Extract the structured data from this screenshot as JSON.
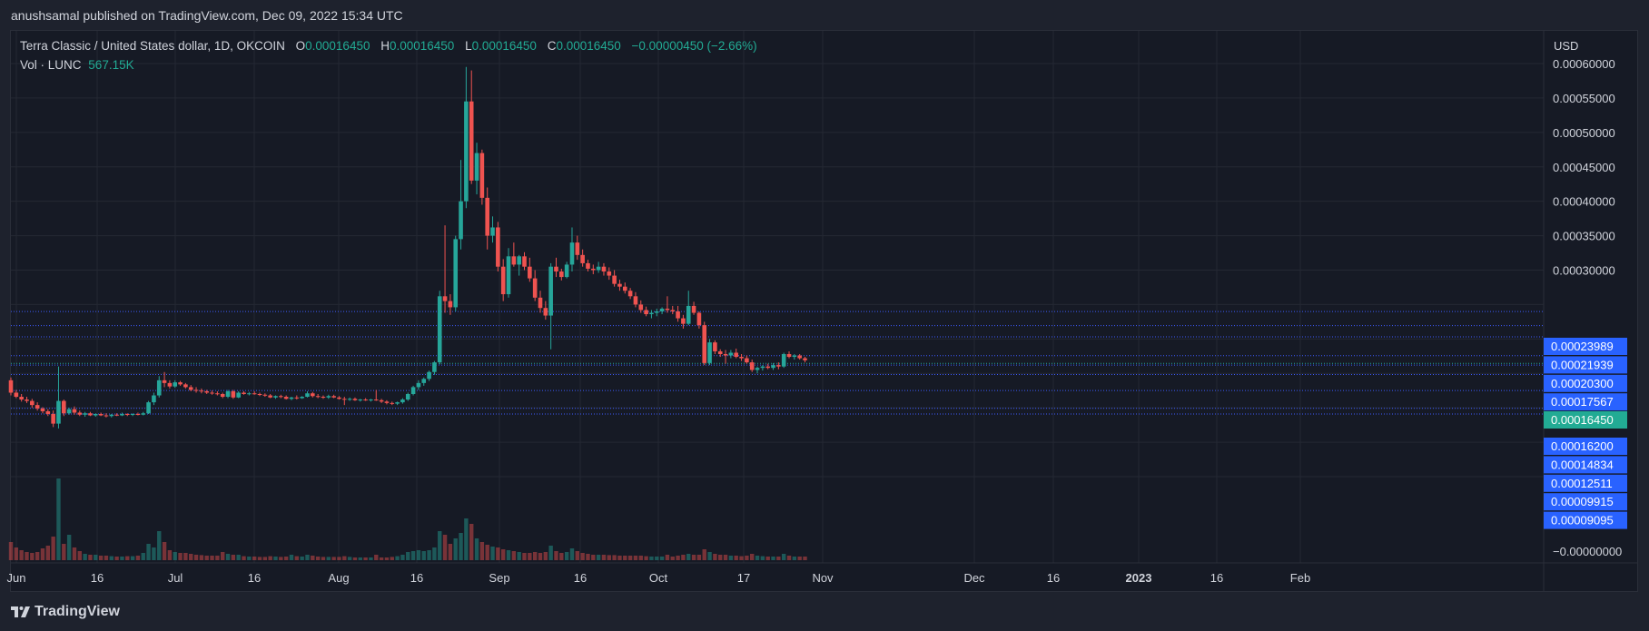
{
  "header": {
    "published": "anushsamal published on TradingView.com, Dec 09, 2022 15:34 UTC"
  },
  "legend": {
    "symbol": "Terra Classic / United States dollar, 1D, OKCOIN",
    "o_label": "O",
    "o_value": "0.00016450",
    "h_label": "H",
    "h_value": "0.00016450",
    "l_label": "L",
    "l_value": "0.00016450",
    "c_label": "C",
    "c_value": "0.00016450",
    "change": "−0.00000450 (−2.66%)",
    "vol_label": "Vol · LUNC",
    "vol_value": "567.15K"
  },
  "currency": "USD",
  "footer": {
    "brand": "TradingView"
  },
  "colors": {
    "up": "#26a69a",
    "down": "#ef5350",
    "grid": "#242833",
    "level_line": "#3d5afe",
    "level_badge": "#2962ff",
    "last_badge": "#22ab94"
  },
  "chart_data": {
    "type": "candlestick",
    "symbol": "LUNC/USD",
    "interval": "1D",
    "x_ticks": [
      "Jun",
      "16",
      "Jul",
      "16",
      "Aug",
      "16",
      "Sep",
      "16",
      "Oct",
      "17",
      "Nov",
      "Dec",
      "16",
      "2023",
      "16",
      "Feb"
    ],
    "y_ticks": [
      "0.00060000",
      "0.00055000",
      "0.00050000",
      "0.00045000",
      "0.00040000",
      "0.00035000",
      "0.00030000",
      "−0.00000000"
    ],
    "ylim": [
      0,
      0.0006
    ],
    "level_labels": [
      "0.00023989",
      "0.00021939",
      "0.00020300",
      "0.00017567",
      "0.00016200",
      "0.00014834",
      "0.00012511",
      "0.00009915",
      "0.00009095"
    ],
    "last_price_label": "0.00016450",
    "levels": [
      0.00023989,
      0.00021939,
      0.000203,
      0.00017567,
      0.000162,
      0.00014834,
      0.00012511,
      9.915e-05,
      9.095e-05
    ],
    "last_price": 0.0001645,
    "start_date": "2022-06-01",
    "ohlcv": [
      [
        0.00014,
        0.000144,
        0.000118,
        0.000122,
        1.0
      ],
      [
        0.000122,
        0.000126,
        0.000114,
        0.000116,
        0.7
      ],
      [
        0.000116,
        0.00012,
        0.000109,
        0.000112,
        0.55
      ],
      [
        0.000112,
        0.000116,
        0.000107,
        0.00011,
        0.45
      ],
      [
        0.00011,
        0.000113,
        0.0001,
        0.000104,
        0.4
      ],
      [
        0.000104,
        0.000108,
        9.6e-05,
        9.9e-05,
        0.45
      ],
      [
        9.9e-05,
        0.000101,
        9.2e-05,
        9.5e-05,
        0.65
      ],
      [
        9.5e-05,
        9.8e-05,
        8.8e-05,
        9.1e-05,
        0.8
      ],
      [
        9.1e-05,
        9.6e-05,
        7.2e-05,
        7.7e-05,
        1.3
      ],
      [
        7.7e-05,
        0.00016,
        7e-05,
        0.00011,
        4.5
      ],
      [
        0.00011,
        0.000112,
        8.8e-05,
        9.2e-05,
        0.9
      ],
      [
        9.2e-05,
        0.0001,
        9e-05,
        9.8e-05,
        1.4
      ],
      [
        9.8e-05,
        0.000102,
        9e-05,
        9.3e-05,
        0.7
      ],
      [
        9.3e-05,
        9.6e-05,
        8.8e-05,
        9e-05,
        0.5
      ],
      [
        9e-05,
        9.4e-05,
        8.7e-05,
        9.2e-05,
        0.35
      ],
      [
        9.2e-05,
        9.4e-05,
        8.8e-05,
        8.9e-05,
        0.3
      ],
      [
        8.9e-05,
        9.2e-05,
        8.7e-05,
        9.1e-05,
        0.3
      ],
      [
        9.1e-05,
        9.3e-05,
        8.8e-05,
        8.9e-05,
        0.25
      ],
      [
        8.9e-05,
        9.2e-05,
        8.6e-05,
        8.8e-05,
        0.25
      ],
      [
        8.8e-05,
        9.1e-05,
        8.6e-05,
        9e-05,
        0.22
      ],
      [
        9e-05,
        9.2e-05,
        8.8e-05,
        8.9e-05,
        0.2
      ],
      [
        8.9e-05,
        9.3e-05,
        8.8e-05,
        9.1e-05,
        0.2
      ],
      [
        9.1e-05,
        9.2e-05,
        8.8e-05,
        9e-05,
        0.22
      ],
      [
        9e-05,
        9.2e-05,
        8.8e-05,
        9.1e-05,
        0.22
      ],
      [
        9.1e-05,
        9.3e-05,
        8.9e-05,
        9e-05,
        0.25
      ],
      [
        9e-05,
        9.4e-05,
        8.9e-05,
        9.2e-05,
        0.4
      ],
      [
        9.2e-05,
        0.00011,
        9.1e-05,
        0.000108,
        0.9
      ],
      [
        0.000108,
        0.000122,
        0.000104,
        0.000118,
        0.7
      ],
      [
        0.000118,
        0.000146,
        0.000115,
        0.00014,
        1.6
      ],
      [
        0.00014,
        0.000152,
        0.00013,
        0.000136,
        1.0
      ],
      [
        0.000136,
        0.00014,
        0.000128,
        0.000131,
        0.55
      ],
      [
        0.000131,
        0.00014,
        0.000129,
        0.000137,
        0.45
      ],
      [
        0.000137,
        0.000139,
        0.000132,
        0.000134,
        0.4
      ],
      [
        0.000134,
        0.000136,
        0.000128,
        0.00013,
        0.4
      ],
      [
        0.00013,
        0.000133,
        0.000124,
        0.000126,
        0.35
      ],
      [
        0.000126,
        0.00013,
        0.000122,
        0.000125,
        0.3
      ],
      [
        0.000125,
        0.000128,
        0.000121,
        0.000124,
        0.28
      ],
      [
        0.000124,
        0.000126,
        0.00012,
        0.000122,
        0.25
      ],
      [
        0.000122,
        0.000125,
        0.000119,
        0.000121,
        0.25
      ],
      [
        0.000121,
        0.000124,
        0.000118,
        0.00012,
        0.25
      ],
      [
        0.00012,
        0.000122,
        0.000114,
        0.000116,
        0.45
      ],
      [
        0.000116,
        0.000126,
        0.000114,
        0.000124,
        0.35
      ],
      [
        0.000124,
        0.000126,
        0.000113,
        0.000115,
        0.3
      ],
      [
        0.000115,
        0.000124,
        0.000114,
        0.000122,
        0.3
      ],
      [
        0.000122,
        0.000124,
        0.000119,
        0.00012,
        0.22
      ],
      [
        0.00012,
        0.000123,
        0.000118,
        0.000121,
        0.2
      ],
      [
        0.000121,
        0.000124,
        0.000119,
        0.00012,
        0.2
      ],
      [
        0.00012,
        0.000122,
        0.000117,
        0.000119,
        0.18
      ],
      [
        0.000119,
        0.000121,
        0.000116,
        0.000118,
        0.18
      ],
      [
        0.000118,
        0.00012,
        0.000114,
        0.000115,
        0.22
      ],
      [
        0.000115,
        0.000118,
        0.000113,
        0.000117,
        0.2
      ],
      [
        0.000117,
        0.000119,
        0.000114,
        0.000116,
        0.18
      ],
      [
        0.000116,
        0.000118,
        0.000112,
        0.000113,
        0.2
      ],
      [
        0.000113,
        0.000116,
        0.000111,
        0.000115,
        0.3
      ],
      [
        0.000115,
        0.000118,
        0.000112,
        0.000114,
        0.22
      ],
      [
        0.000114,
        0.000117,
        0.000113,
        0.000116,
        0.2
      ],
      [
        0.000116,
        0.000124,
        0.000115,
        0.000121,
        0.3
      ],
      [
        0.000121,
        0.000123,
        0.000115,
        0.000117,
        0.25
      ],
      [
        0.000117,
        0.00012,
        0.000114,
        0.000116,
        0.2
      ],
      [
        0.000116,
        0.000118,
        0.000113,
        0.000115,
        0.18
      ],
      [
        0.000115,
        0.000119,
        0.000113,
        0.000117,
        0.18
      ],
      [
        0.000117,
        0.000119,
        0.000114,
        0.000115,
        0.18
      ],
      [
        0.000115,
        0.000117,
        0.000112,
        0.000113,
        0.18
      ],
      [
        0.000113,
        0.000116,
        0.000104,
        0.000112,
        0.22
      ],
      [
        0.000112,
        0.000115,
        0.00011,
        0.000113,
        0.18
      ],
      [
        0.000113,
        0.000115,
        0.00011,
        0.000111,
        0.15
      ],
      [
        0.000111,
        0.000113,
        0.000109,
        0.000112,
        0.15
      ],
      [
        0.000112,
        0.000114,
        0.00011,
        0.000111,
        0.15
      ],
      [
        0.000111,
        0.000113,
        0.000109,
        0.000112,
        0.15
      ],
      [
        0.000112,
        0.000126,
        0.00011,
        0.000111,
        0.3
      ],
      [
        0.000111,
        0.000113,
        0.000107,
        0.000109,
        0.15
      ],
      [
        0.000109,
        0.000111,
        0.000105,
        0.000107,
        0.15
      ],
      [
        0.000107,
        0.000109,
        0.000104,
        0.000106,
        0.18
      ],
      [
        0.000106,
        0.000109,
        0.000104,
        0.000108,
        0.22
      ],
      [
        0.000108,
        0.000114,
        0.000106,
        0.000112,
        0.3
      ],
      [
        0.000112,
        0.000122,
        0.00011,
        0.00012,
        0.45
      ],
      [
        0.00012,
        0.000132,
        0.000118,
        0.00013,
        0.5
      ],
      [
        0.00013,
        0.00014,
        0.000126,
        0.000136,
        0.55
      ],
      [
        0.000136,
        0.000144,
        0.000132,
        0.000142,
        0.5
      ],
      [
        0.000142,
        0.000154,
        0.000139,
        0.000152,
        0.55
      ],
      [
        0.000152,
        0.000168,
        0.000148,
        0.000166,
        0.7
      ],
      [
        0.000166,
        0.00027,
        0.000163,
        0.000262,
        1.6
      ],
      [
        0.000262,
        0.000365,
        0.000238,
        0.000255,
        1.4
      ],
      [
        0.000255,
        0.000265,
        0.000235,
        0.000246,
        0.9
      ],
      [
        0.000246,
        0.00035,
        0.00024,
        0.000345,
        1.2
      ],
      [
        0.000345,
        0.00046,
        0.00033,
        0.0004,
        1.5
      ],
      [
        0.0004,
        0.000595,
        0.00039,
        0.000545,
        2.3
      ],
      [
        0.000545,
        0.00059,
        0.000425,
        0.00043,
        2.0
      ],
      [
        0.00043,
        0.000485,
        0.00041,
        0.00047,
        1.2
      ],
      [
        0.00047,
        0.000475,
        0.000395,
        0.000405,
        1.0
      ],
      [
        0.000405,
        0.00042,
        0.00033,
        0.00035,
        0.85
      ],
      [
        0.00035,
        0.000378,
        0.00034,
        0.000362,
        0.75
      ],
      [
        0.000362,
        0.00037,
        0.000298,
        0.000305,
        0.7
      ],
      [
        0.000305,
        0.000316,
        0.000255,
        0.000265,
        0.6
      ],
      [
        0.000265,
        0.000332,
        0.00026,
        0.00032,
        0.55
      ],
      [
        0.00032,
        0.00034,
        0.000305,
        0.000308,
        0.5
      ],
      [
        0.000308,
        0.000322,
        0.000292,
        0.00032,
        0.45
      ],
      [
        0.00032,
        0.000326,
        0.0003,
        0.000305,
        0.4
      ],
      [
        0.000305,
        0.000318,
        0.000283,
        0.000288,
        0.4
      ],
      [
        0.000288,
        0.0003,
        0.000255,
        0.00026,
        0.45
      ],
      [
        0.00026,
        0.00027,
        0.000238,
        0.000245,
        0.4
      ],
      [
        0.000245,
        0.000255,
        0.000228,
        0.000234,
        0.45
      ],
      [
        0.000234,
        0.00031,
        0.000185,
        0.000305,
        0.8
      ],
      [
        0.000305,
        0.000318,
        0.00029,
        0.000298,
        0.5
      ],
      [
        0.000298,
        0.000302,
        0.000285,
        0.00029,
        0.4
      ],
      [
        0.00029,
        0.000312,
        0.000288,
        0.000308,
        0.45
      ],
      [
        0.000308,
        0.000362,
        0.000298,
        0.00034,
        0.65
      ],
      [
        0.00034,
        0.00035,
        0.000315,
        0.000322,
        0.5
      ],
      [
        0.000322,
        0.00033,
        0.000305,
        0.00031,
        0.4
      ],
      [
        0.00031,
        0.000315,
        0.000298,
        0.000302,
        0.35
      ],
      [
        0.000302,
        0.000308,
        0.000294,
        0.0003,
        0.3
      ],
      [
        0.0003,
        0.000312,
        0.000296,
        0.000305,
        0.3
      ],
      [
        0.000305,
        0.00031,
        0.000292,
        0.000298,
        0.3
      ],
      [
        0.000298,
        0.000304,
        0.000286,
        0.000292,
        0.28
      ],
      [
        0.000292,
        0.0003,
        0.000276,
        0.00028,
        0.28
      ],
      [
        0.00028,
        0.000286,
        0.00027,
        0.000276,
        0.25
      ],
      [
        0.000276,
        0.000282,
        0.000266,
        0.00027,
        0.25
      ],
      [
        0.00027,
        0.000274,
        0.000258,
        0.000262,
        0.25
      ],
      [
        0.000262,
        0.000268,
        0.000246,
        0.00025,
        0.25
      ],
      [
        0.00025,
        0.000256,
        0.000238,
        0.000242,
        0.25
      ],
      [
        0.000242,
        0.000247,
        0.000233,
        0.000236,
        0.22
      ],
      [
        0.000236,
        0.000242,
        0.00023,
        0.000238,
        0.2
      ],
      [
        0.000238,
        0.000244,
        0.000233,
        0.00024,
        0.2
      ],
      [
        0.00024,
        0.000246,
        0.000236,
        0.000244,
        0.2
      ],
      [
        0.000244,
        0.000262,
        0.000238,
        0.000242,
        0.3
      ],
      [
        0.000242,
        0.000248,
        0.000236,
        0.00024,
        0.2
      ],
      [
        0.00024,
        0.000248,
        0.000225,
        0.00023,
        0.25
      ],
      [
        0.00023,
        0.000235,
        0.000215,
        0.000222,
        0.3
      ],
      [
        0.000222,
        0.00027,
        0.00022,
        0.000248,
        0.35
      ],
      [
        0.000248,
        0.000254,
        0.000235,
        0.000238,
        0.3
      ],
      [
        0.000238,
        0.00024,
        0.000215,
        0.00022,
        0.3
      ],
      [
        0.00022,
        0.000225,
        0.000162,
        0.000165,
        0.6
      ],
      [
        0.000165,
        0.0002,
        0.000162,
        0.000195,
        0.45
      ],
      [
        0.000195,
        0.000198,
        0.000178,
        0.000182,
        0.35
      ],
      [
        0.000182,
        0.000185,
        0.000174,
        0.000178,
        0.3
      ],
      [
        0.000178,
        0.000184,
        0.000164,
        0.000176,
        0.3
      ],
      [
        0.000176,
        0.000184,
        0.000172,
        0.00018,
        0.25
      ],
      [
        0.00018,
        0.000186,
        0.000172,
        0.000174,
        0.25
      ],
      [
        0.000174,
        0.000178,
        0.000168,
        0.000172,
        0.22
      ],
      [
        0.000172,
        0.000176,
        0.000164,
        0.000166,
        0.25
      ],
      [
        0.000166,
        0.00017,
        0.000152,
        0.000155,
        0.35
      ],
      [
        0.000155,
        0.00016,
        0.00015,
        0.000158,
        0.25
      ],
      [
        0.000158,
        0.000162,
        0.000154,
        0.00016,
        0.22
      ],
      [
        0.00016,
        0.000164,
        0.000156,
        0.000158,
        0.2
      ],
      [
        0.000158,
        0.000165,
        0.000155,
        0.000162,
        0.2
      ],
      [
        0.000162,
        0.000166,
        0.000156,
        0.00016,
        0.2
      ],
      [
        0.00016,
        0.00018,
        0.000158,
        0.000178,
        0.35
      ],
      [
        0.000178,
        0.000182,
        0.000172,
        0.000174,
        0.25
      ],
      [
        0.000174,
        0.000178,
        0.00017,
        0.000176,
        0.2
      ],
      [
        0.000176,
        0.000178,
        0.00017,
        0.000172,
        0.2
      ],
      [
        0.000172,
        0.000174,
        0.000166,
        0.000169,
        0.2
      ]
    ]
  }
}
